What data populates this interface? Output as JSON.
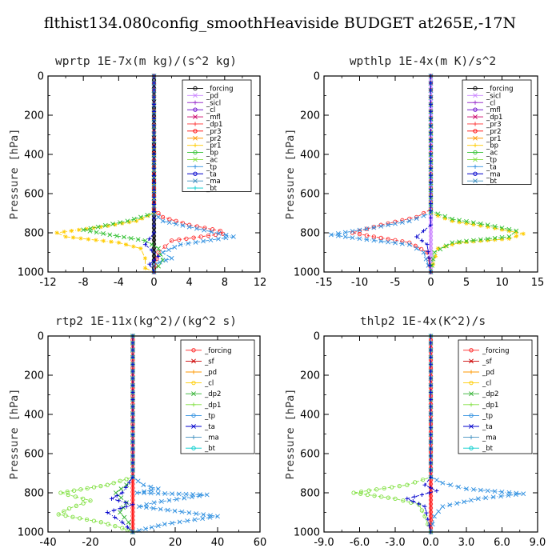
{
  "figure_title": "flthist134.080config_smoothHeaviside  BUDGET at265E,-17N",
  "chart_data": [
    {
      "type": "line",
      "title": "wprtp  1E-7x(m kg)/(s^2 kg)",
      "ylabel": "Pressure [hPa]",
      "xlim": [
        -12,
        12
      ],
      "ylim": [
        1000,
        0
      ],
      "y_inverted": true,
      "xticks": [
        "-12",
        "-8",
        "-4",
        "0",
        "4",
        "8",
        "12"
      ],
      "yticks": [
        "0",
        "200",
        "400",
        "600",
        "800",
        "1000"
      ],
      "grid": false,
      "legend_position": "top-right",
      "legend": [
        "_forcing",
        "_pd",
        "_sicl",
        "_cl",
        "_mfl",
        "_dp1",
        "_pr3",
        "_pr2",
        "_pr1",
        "_bp",
        "_ac",
        "_tp",
        "_ta",
        "_ma",
        "_bt"
      ],
      "series": [
        {
          "name": "_forcing",
          "color": "#000000",
          "marker": "circle",
          "points": [
            [
              0,
              0
            ],
            [
              0,
              1000
            ]
          ]
        },
        {
          "name": "_dp1",
          "color": "#ff3030",
          "marker": "circle",
          "points": [
            [
              0,
              0
            ],
            [
              0,
              680
            ],
            [
              1,
              720
            ],
            [
              4,
              760
            ],
            [
              7.5,
              790
            ],
            [
              7.8,
              805
            ],
            [
              2,
              840
            ],
            [
              0.5,
              900
            ],
            [
              0,
              1000
            ]
          ]
        },
        {
          "name": "_pr1",
          "color": "#ffcc00",
          "marker": "star",
          "points": [
            [
              0,
              0
            ],
            [
              0,
              700
            ],
            [
              -2,
              740
            ],
            [
              -6,
              770
            ],
            [
              -11,
              800
            ],
            [
              -10,
              820
            ],
            [
              -4,
              850
            ],
            [
              -1.5,
              880
            ],
            [
              -1,
              930
            ],
            [
              -1,
              980
            ],
            [
              0,
              1000
            ]
          ]
        },
        {
          "name": "_bp",
          "color": "#30c030",
          "marker": "cross",
          "points": [
            [
              0,
              0
            ],
            [
              0,
              700
            ],
            [
              -3,
              740
            ],
            [
              -8,
              785
            ],
            [
              -5,
              810
            ],
            [
              -1,
              840
            ],
            [
              0.5,
              880
            ],
            [
              1,
              940
            ],
            [
              0,
              1000
            ]
          ]
        },
        {
          "name": "_tp",
          "color": "#3090e0",
          "marker": "cross",
          "points": [
            [
              0,
              0
            ],
            [
              0,
              700
            ],
            [
              1,
              740
            ],
            [
              4,
              770
            ],
            [
              9,
              820
            ],
            [
              3,
              860
            ],
            [
              1,
              900
            ],
            [
              2,
              930
            ],
            [
              0,
              960
            ],
            [
              0,
              1000
            ]
          ]
        },
        {
          "name": "_ta",
          "color": "#0000cc",
          "marker": "plus",
          "points": [
            [
              0,
              0
            ],
            [
              0,
              800
            ],
            [
              -1,
              860
            ],
            [
              0.5,
              920
            ],
            [
              -0.5,
              960
            ],
            [
              0,
              1000
            ]
          ]
        }
      ]
    },
    {
      "type": "line",
      "title": "wpthlp  1E-4x(m K)/s^2",
      "ylabel": "Pressure [hPa]",
      "xlim": [
        -15,
        15
      ],
      "ylim": [
        1000,
        0
      ],
      "y_inverted": true,
      "xticks": [
        "-15",
        "-10",
        "-5",
        "0",
        "5",
        "10",
        "15"
      ],
      "yticks": [
        "0",
        "200",
        "400",
        "600",
        "800",
        "1000"
      ],
      "grid": false,
      "legend_position": "top-right",
      "legend": [
        "_forcing",
        "_sicl",
        "_cl",
        "_mfl",
        "_dp1",
        "_pr3",
        "_pr2",
        "_pr1",
        "_bp",
        "_ac",
        "_tp",
        "_ta",
        "_ma",
        "_bt"
      ],
      "series": [
        {
          "name": "_forcing",
          "color": "#cc88ff",
          "marker": "circle",
          "points": [
            [
              0,
              0
            ],
            [
              0,
              1000
            ]
          ]
        },
        {
          "name": "_dp1",
          "color": "#ff3030",
          "marker": "circle",
          "points": [
            [
              0,
              0
            ],
            [
              0,
              680
            ],
            [
              -2,
              720
            ],
            [
              -7,
              760
            ],
            [
              -11,
              800
            ],
            [
              -8,
              820
            ],
            [
              -3,
              850
            ],
            [
              -0.5,
              900
            ],
            [
              0,
              1000
            ]
          ]
        },
        {
          "name": "_pr1",
          "color": "#ffcc00",
          "marker": "star",
          "points": [
            [
              0,
              0
            ],
            [
              0,
              700
            ],
            [
              3,
              740
            ],
            [
              8,
              770
            ],
            [
              13,
              805
            ],
            [
              11,
              830
            ],
            [
              4,
              850
            ],
            [
              1,
              880
            ],
            [
              0,
              1000
            ]
          ]
        },
        {
          "name": "_bp",
          "color": "#30c030",
          "marker": "cross",
          "points": [
            [
              0,
              0
            ],
            [
              0,
              690
            ],
            [
              3,
              730
            ],
            [
              8,
              760
            ],
            [
              12,
              790
            ],
            [
              11,
              820
            ],
            [
              3,
              850
            ],
            [
              0.5,
              900
            ],
            [
              0,
              1000
            ]
          ]
        },
        {
          "name": "_tp",
          "color": "#3090e0",
          "marker": "cross",
          "points": [
            [
              0,
              0
            ],
            [
              0,
              700
            ],
            [
              -3,
              740
            ],
            [
              -9,
              780
            ],
            [
              -14,
              810
            ],
            [
              -10,
              830
            ],
            [
              -3,
              860
            ],
            [
              -1,
              900
            ],
            [
              0,
              1000
            ]
          ]
        },
        {
          "name": "_ta",
          "color": "#0000cc",
          "marker": "plus",
          "points": [
            [
              0,
              0
            ],
            [
              0,
              760
            ],
            [
              -1,
              790
            ],
            [
              -2,
              820
            ],
            [
              -0.5,
              860
            ],
            [
              0,
              1000
            ]
          ]
        }
      ]
    },
    {
      "type": "line",
      "title": "rtp2  1E-11x(kg^2)/(kg^2 s)",
      "ylabel": "Pressure [hPa]",
      "xlim": [
        -40,
        60
      ],
      "ylim": [
        1000,
        0
      ],
      "y_inverted": true,
      "xticks": [
        "-40",
        "-20",
        "0",
        "20",
        "40",
        "60"
      ],
      "yticks": [
        "0",
        "200",
        "400",
        "600",
        "800",
        "1000"
      ],
      "grid": false,
      "legend_position": "top-right",
      "legend": [
        "_forcing",
        "_sf",
        "_pd",
        "_cl",
        "_dp2",
        "_dp1",
        "_tp",
        "_ta",
        "_ma",
        "_bt"
      ],
      "series": [
        {
          "name": "_forcing",
          "color": "#ff2020",
          "marker": "circle",
          "points": [
            [
              0,
              0
            ],
            [
              0,
              1000
            ]
          ]
        },
        {
          "name": "_dp1",
          "color": "#80e040",
          "marker": "circle",
          "points": [
            [
              0,
              0
            ],
            [
              0,
              720
            ],
            [
              -12,
              760
            ],
            [
              -34,
              800
            ],
            [
              -20,
              840
            ],
            [
              -30,
              880
            ],
            [
              -35,
              910
            ],
            [
              -15,
              950
            ],
            [
              -5,
              980
            ],
            [
              0,
              1000
            ]
          ]
        },
        {
          "name": "_dp2",
          "color": "#30b030",
          "marker": "cross",
          "points": [
            [
              0,
              0
            ],
            [
              0,
              720
            ],
            [
              -3,
              760
            ],
            [
              -8,
              800
            ],
            [
              -3,
              850
            ],
            [
              -6,
              900
            ],
            [
              -2,
              950
            ],
            [
              0,
              1000
            ]
          ]
        },
        {
          "name": "_tp",
          "color": "#3090e0",
          "marker": "cross",
          "points": [
            [
              0,
              0
            ],
            [
              0,
              720
            ],
            [
              5,
              760
            ],
            [
              12,
              780
            ],
            [
              2,
              800
            ],
            [
              35,
              810
            ],
            [
              10,
              850
            ],
            [
              3,
              870
            ],
            [
              40,
              920
            ],
            [
              15,
              960
            ],
            [
              0,
              1000
            ]
          ]
        },
        {
          "name": "_ta",
          "color": "#0000cc",
          "marker": "plus",
          "points": [
            [
              0,
              0
            ],
            [
              0,
              720
            ],
            [
              -5,
              800
            ],
            [
              -10,
              830
            ],
            [
              0,
              860
            ],
            [
              -12,
              900
            ],
            [
              -5,
              950
            ],
            [
              0,
              1000
            ]
          ]
        }
      ]
    },
    {
      "type": "line",
      "title": "thlp2  1E-4x(K^2)/s",
      "ylabel": "Pressure [hPa]",
      "xlim": [
        -9,
        9
      ],
      "ylim": [
        1000,
        0
      ],
      "y_inverted": true,
      "xticks": [
        "-9.0",
        "-6.0",
        "-3.0",
        "0.0",
        "3.0",
        "6.0",
        "9.0"
      ],
      "yticks": [
        "0",
        "200",
        "400",
        "600",
        "800",
        "1000"
      ],
      "grid": false,
      "legend_position": "top-right",
      "legend": [
        "_forcing",
        "_sf",
        "_pd",
        "_cl",
        "_dp2",
        "_dp1",
        "_tp",
        "_ta",
        "_ma",
        "_bt"
      ],
      "series": [
        {
          "name": "_forcing",
          "color": "#ff2020",
          "marker": "circle",
          "points": [
            [
              0,
              0
            ],
            [
              0,
              1000
            ]
          ]
        },
        {
          "name": "_dp1",
          "color": "#80e040",
          "marker": "circle",
          "points": [
            [
              0,
              0
            ],
            [
              0,
              720
            ],
            [
              -2,
              760
            ],
            [
              -6.5,
              800
            ],
            [
              -3,
              830
            ],
            [
              -1,
              860
            ],
            [
              -0.5,
              920
            ],
            [
              0,
              1000
            ]
          ]
        },
        {
          "name": "_tp",
          "color": "#3090e0",
          "marker": "cross",
          "points": [
            [
              0,
              0
            ],
            [
              0,
              720
            ],
            [
              1,
              750
            ],
            [
              3,
              780
            ],
            [
              7.8,
              805
            ],
            [
              4,
              830
            ],
            [
              1,
              870
            ],
            [
              0.3,
              920
            ],
            [
              0,
              1000
            ]
          ]
        },
        {
          "name": "_ta",
          "color": "#0000cc",
          "marker": "plus",
          "points": [
            [
              0,
              0
            ],
            [
              0,
              720
            ],
            [
              -0.5,
              760
            ],
            [
              0.5,
              790
            ],
            [
              -2,
              830
            ],
            [
              -0.5,
              870
            ],
            [
              0,
              1000
            ]
          ]
        }
      ]
    }
  ]
}
